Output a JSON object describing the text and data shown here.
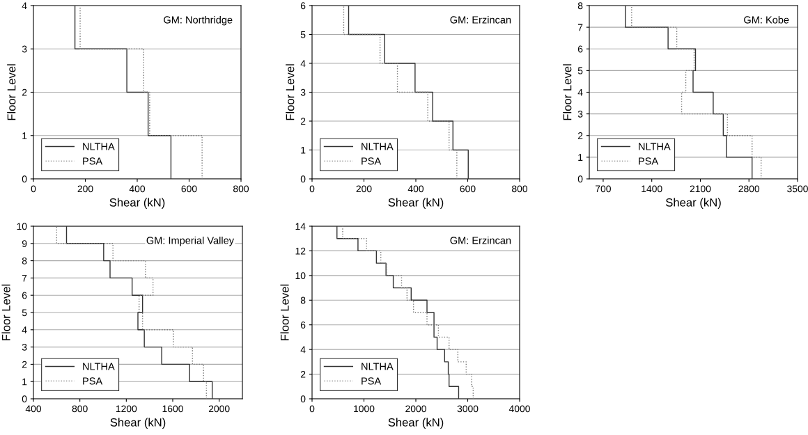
{
  "chart_data": [
    {
      "type": "line",
      "annotations": [
        "GM: Northridge"
      ],
      "xlabel": "Shear (kN)",
      "ylabel": "Floor Level",
      "xlim": [
        0,
        800
      ],
      "xticks": [
        0,
        200,
        400,
        600,
        800
      ],
      "ylim": [
        0,
        4
      ],
      "yticks": [
        0,
        1,
        2,
        3,
        4
      ],
      "grid": "y",
      "legend": "bottom left",
      "series": [
        {
          "name": "NLTHA",
          "color": "#333333",
          "line_style": "solid",
          "x": [
            530,
            530,
            442,
            442,
            360,
            360,
            160,
            160
          ],
          "values": [
            0,
            1,
            1,
            2,
            2,
            3,
            3,
            4
          ]
        },
        {
          "name": "PSA",
          "color": "#777777",
          "line_style": "dotted",
          "x": [
            650,
            650,
            448,
            448,
            425,
            425,
            180,
            180
          ],
          "values": [
            0,
            1,
            1,
            2,
            2,
            3,
            3,
            4
          ]
        }
      ]
    },
    {
      "type": "line",
      "annotations": [
        "GM: Erzincan"
      ],
      "xlabel": "Shear (kN)",
      "ylabel": "Floor Level",
      "xlim": [
        0,
        800
      ],
      "xticks": [
        0,
        200,
        400,
        600,
        800
      ],
      "ylim": [
        0,
        6
      ],
      "yticks": [
        0,
        1,
        2,
        3,
        4,
        5,
        6
      ],
      "grid": "y",
      "legend": "bottom left",
      "series": [
        {
          "name": "NLTHA",
          "color": "#333333",
          "line_style": "solid",
          "x": [
            602,
            602,
            543,
            543,
            465,
            465,
            397,
            397,
            280,
            280,
            141,
            141
          ],
          "values": [
            0,
            1,
            1,
            2,
            2,
            3,
            3,
            4,
            4,
            5,
            5,
            6
          ]
        },
        {
          "name": "PSA",
          "color": "#777777",
          "line_style": "dotted",
          "x": [
            558,
            558,
            528,
            528,
            446,
            446,
            329,
            329,
            262,
            262,
            122,
            122
          ],
          "values": [
            0,
            1,
            1,
            2,
            2,
            3,
            3,
            4,
            4,
            5,
            5,
            6
          ]
        }
      ]
    },
    {
      "type": "line",
      "annotations": [
        "GM: Kobe"
      ],
      "xlabel": "Shear (kN)",
      "ylabel": "Floor Level",
      "xlim": [
        500,
        3500
      ],
      "xticks": [
        700,
        1400,
        2100,
        2800,
        3500
      ],
      "ylim": [
        0,
        8
      ],
      "yticks": [
        0,
        1,
        2,
        3,
        4,
        5,
        6,
        7,
        8
      ],
      "grid": "y",
      "legend": "bottom left",
      "series": [
        {
          "name": "NLTHA",
          "color": "#333333",
          "line_style": "solid",
          "x": [
            2845,
            2845,
            2475,
            2475,
            2430,
            2430,
            2285,
            2285,
            1995,
            1995,
            2030,
            2030,
            1635,
            1635,
            1020,
            1020
          ],
          "values": [
            0,
            1,
            1,
            2,
            2,
            3,
            3,
            4,
            4,
            5,
            5,
            6,
            6,
            7,
            7,
            8
          ]
        },
        {
          "name": "PSA",
          "color": "#777777",
          "line_style": "dotted",
          "x": [
            2975,
            2975,
            2845,
            2845,
            2490,
            2490,
            1830,
            1830,
            1890,
            1890,
            2010,
            2010,
            1760,
            1760,
            1110,
            1110
          ],
          "values": [
            0,
            1,
            1,
            2,
            2,
            3,
            3,
            4,
            4,
            5,
            5,
            6,
            6,
            7,
            7,
            8
          ]
        }
      ]
    },
    {
      "type": "line",
      "annotations": [
        "GM: Imperial Valley"
      ],
      "xlabel": "Shear (kN)",
      "ylabel": "Floor Level",
      "xlim": [
        400,
        2200
      ],
      "xticks": [
        400,
        800,
        1200,
        1600,
        2000
      ],
      "ylim": [
        0,
        10
      ],
      "yticks": [
        0,
        1,
        2,
        3,
        4,
        5,
        6,
        7,
        8,
        9,
        10
      ],
      "grid": "y",
      "legend": "bottom left",
      "series": [
        {
          "name": "NLTHA",
          "color": "#333333",
          "line_style": "solid",
          "x": [
            1940,
            1940,
            1745,
            1745,
            1505,
            1505,
            1355,
            1355,
            1300,
            1300,
            1340,
            1340,
            1250,
            1250,
            1060,
            1060,
            1005,
            1005,
            685,
            685
          ],
          "values": [
            0,
            1,
            1,
            2,
            2,
            3,
            3,
            4,
            4,
            5,
            5,
            6,
            6,
            7,
            7,
            8,
            8,
            9,
            9,
            10
          ]
        },
        {
          "name": "PSA",
          "color": "#777777",
          "line_style": "dotted",
          "x": [
            1890,
            1890,
            1865,
            1865,
            1770,
            1770,
            1605,
            1605,
            1340,
            1340,
            1310,
            1310,
            1430,
            1430,
            1365,
            1365,
            1085,
            1085,
            600,
            600
          ],
          "values": [
            0,
            1,
            1,
            2,
            2,
            3,
            3,
            4,
            4,
            5,
            5,
            6,
            6,
            7,
            7,
            8,
            8,
            9,
            9,
            10
          ]
        }
      ]
    },
    {
      "type": "line",
      "annotations": [
        "GM: Erzincan"
      ],
      "xlabel": "Shear (kN)",
      "ylabel": "Floor Level",
      "xlim": [
        0,
        4000
      ],
      "xticks": [
        0,
        1000,
        2000,
        3000,
        4000
      ],
      "ylim": [
        0,
        14
      ],
      "yticks": [
        0,
        2,
        4,
        6,
        8,
        10,
        12,
        14
      ],
      "grid": "y",
      "legend": "bottom left",
      "series": [
        {
          "name": "NLTHA",
          "color": "#333333",
          "line_style": "solid",
          "x": [
            2825,
            2825,
            2640,
            2640,
            2625,
            2625,
            2555,
            2555,
            2410,
            2410,
            2350,
            2350,
            2350,
            2350,
            2215,
            2215,
            1910,
            1910,
            1565,
            1565,
            1425,
            1425,
            1240,
            1240,
            885,
            885,
            480,
            480
          ],
          "values": [
            0,
            1,
            1,
            2,
            2,
            3,
            3,
            4,
            4,
            5,
            5,
            6,
            6,
            7,
            7,
            8,
            8,
            9,
            9,
            10,
            10,
            11,
            11,
            12,
            12,
            13,
            13,
            14
          ]
        },
        {
          "name": "PSA",
          "color": "#777777",
          "line_style": "dotted",
          "x": [
            3105,
            3105,
            3075,
            3075,
            2970,
            2970,
            2810,
            2810,
            2640,
            2640,
            2435,
            2435,
            2215,
            2215,
            1955,
            1955,
            1830,
            1830,
            1725,
            1725,
            1435,
            1435,
            1325,
            1325,
            1050,
            1050,
            590,
            590
          ],
          "values": [
            0,
            1,
            1,
            2,
            2,
            3,
            3,
            4,
            4,
            5,
            5,
            6,
            6,
            7,
            7,
            8,
            8,
            9,
            9,
            10,
            10,
            11,
            11,
            12,
            12,
            13,
            13,
            14
          ]
        }
      ]
    }
  ]
}
